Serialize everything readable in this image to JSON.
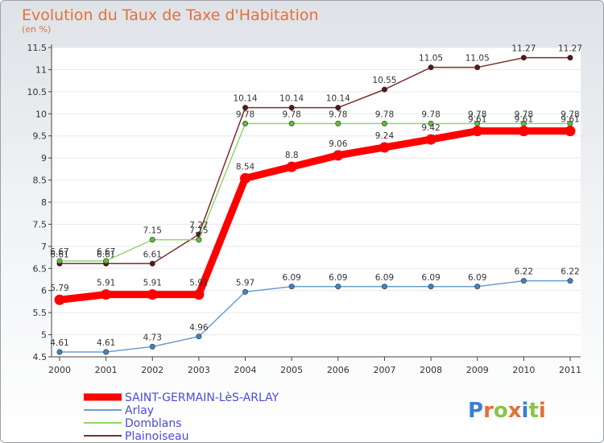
{
  "chart_data": {
    "type": "line",
    "title": "Evolution du Taux de Taxe d'Habitation",
    "subtitle": "(en %)",
    "xlabel": "",
    "ylabel": "",
    "categories": [
      "2000",
      "2001",
      "2002",
      "2003",
      "2004",
      "2005",
      "2006",
      "2007",
      "2008",
      "2009",
      "2010",
      "2011"
    ],
    "ylim": [
      4.5,
      11.5
    ],
    "yticks": [
      4.5,
      5,
      5.5,
      6,
      6.5,
      7,
      7.5,
      8,
      8.5,
      9,
      9.5,
      10,
      10.5,
      11,
      11.5
    ],
    "ytick_labels": [
      "4.5",
      "5",
      "5.5",
      "6",
      "6.5",
      "7",
      "7.5",
      "8",
      "8.5",
      "9",
      "9.5",
      "10",
      "10.5",
      "11",
      "11.5"
    ],
    "grid": "horizontal",
    "legend_position": "bottom-left",
    "series": [
      {
        "name": "Plainoiseau",
        "color": "#7a2e2e",
        "marker": "#5a1616",
        "values": [
          6.61,
          6.61,
          6.61,
          7.27,
          10.14,
          10.14,
          10.14,
          10.55,
          11.05,
          11.05,
          11.27,
          11.27
        ],
        "labels": [
          "6.61",
          "6.61",
          "6.61",
          "7.27",
          "10.14",
          "10.14",
          "10.14",
          "10.55",
          "11.05",
          "11.05",
          "11.27",
          "11.27"
        ]
      },
      {
        "name": "Domblans",
        "color": "#8fd86a",
        "marker": "#5cbf32",
        "values": [
          6.67,
          6.67,
          7.15,
          7.15,
          9.78,
          9.78,
          9.78,
          9.78,
          9.78,
          9.78,
          9.78,
          9.78
        ],
        "labels": [
          "6.67",
          "6.67",
          "7.15",
          "7.15",
          "9.78",
          "9.78",
          "9.78",
          "9.78",
          "9.78",
          "9.78",
          "9.78",
          "9.78"
        ]
      },
      {
        "name": "Arlay",
        "color": "#6a9fd0",
        "marker": "#3d84c6",
        "values": [
          4.61,
          4.61,
          4.73,
          4.96,
          5.97,
          6.09,
          6.09,
          6.09,
          6.09,
          6.09,
          6.22,
          6.22
        ],
        "labels": [
          "4.61",
          "4.61",
          "4.73",
          "4.96",
          "5.97",
          "6.09",
          "6.09",
          "6.09",
          "6.09",
          "6.09",
          "6.22",
          "6.22"
        ]
      },
      {
        "name": "SAINT-GERMAIN-LèS-ARLAY",
        "color": "#ff0000",
        "marker": "#ff0000",
        "values": [
          5.79,
          5.91,
          5.91,
          5.91,
          8.54,
          8.8,
          9.06,
          9.24,
          9.42,
          9.61,
          9.61,
          9.61
        ],
        "labels": [
          "5.79",
          "5.91",
          "5.91",
          "5.91",
          "8.54",
          "8.8",
          "9.06",
          "9.24",
          "9.42",
          "9.61",
          "9.61",
          "9.61"
        ]
      }
    ],
    "legend_order": [
      "SAINT-GERMAIN-LèS-ARLAY",
      "Arlay",
      "Domblans",
      "Plainoiseau"
    ]
  },
  "logo": {
    "letters": [
      "P",
      "r",
      "o",
      "x",
      "i",
      "t",
      "i"
    ],
    "colors": [
      "#3b7fd4",
      "#e2703a",
      "#8bc34a",
      "#e2703a",
      "#3b7fd4",
      "#8bc34a",
      "#e2703a"
    ]
  }
}
